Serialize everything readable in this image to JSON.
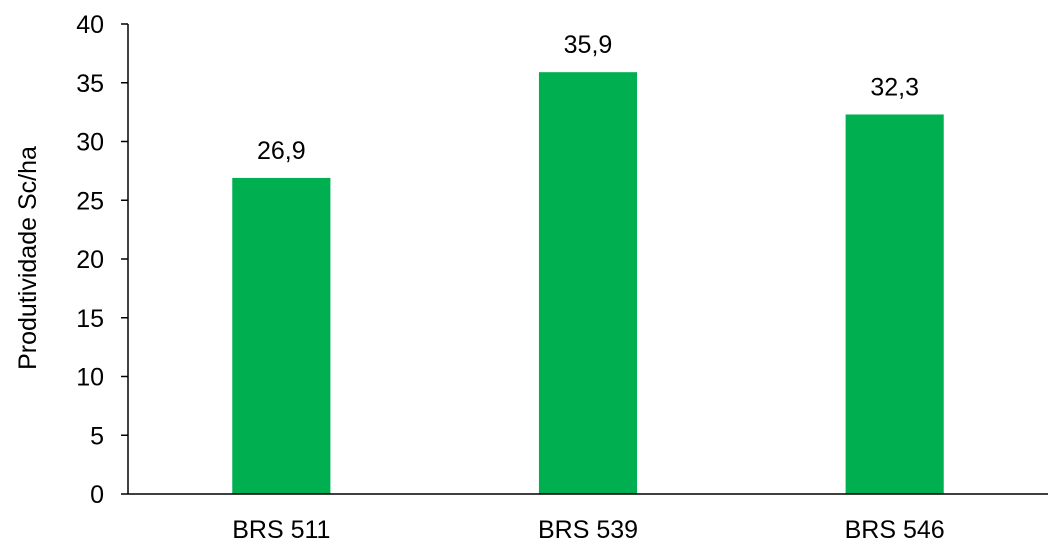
{
  "chart_data": {
    "type": "bar",
    "title": "",
    "xlabel": "",
    "ylabel": "Produtividade Sc/ha",
    "categories": [
      "BRS 511",
      "BRS 539",
      "BRS 546"
    ],
    "values": [
      26.9,
      35.9,
      32.3
    ],
    "value_labels": [
      "26,9",
      "35,9",
      "32,3"
    ],
    "ylim": [
      0,
      40
    ],
    "yticks": [
      0,
      5,
      10,
      15,
      20,
      25,
      30,
      35,
      40
    ],
    "grid": false,
    "legend": "none",
    "bar_color": "#00B050"
  }
}
